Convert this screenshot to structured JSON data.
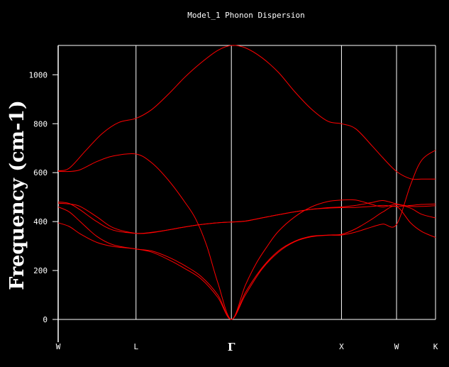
{
  "chart_data": {
    "type": "line",
    "title": "Model_1 Phonon Dispersion",
    "xlabel": "",
    "ylabel": "Frequency (cm-1)",
    "ylim": [
      0,
      1120
    ],
    "yticks": [
      0,
      200,
      400,
      600,
      800,
      1000
    ],
    "grid": false,
    "legend": "none",
    "line_color": "#ff0000",
    "axis_color": "#ffffff",
    "background_color": "#000000",
    "kpoint_labels": [
      {
        "label": "W",
        "x": 0
      },
      {
        "label": "L",
        "x": 0.707
      },
      {
        "label": "Γ",
        "x": 1.573
      },
      {
        "label": "X",
        "x": 2.573
      },
      {
        "label": "W",
        "x": 3.073
      },
      {
        "label": "K",
        "x": 3.427
      }
    ],
    "series": [
      {
        "values": [
          [
            0,
            608
          ],
          [
            0.1,
            618
          ],
          [
            0.25,
            690
          ],
          [
            0.4,
            760
          ],
          [
            0.55,
            805
          ],
          [
            0.707,
            822
          ],
          [
            0.85,
            858
          ],
          [
            1.0,
            920
          ],
          [
            1.15,
            990
          ],
          [
            1.3,
            1050
          ],
          [
            1.45,
            1100
          ],
          [
            1.573,
            1120
          ],
          [
            1.7,
            1110
          ],
          [
            1.85,
            1070
          ],
          [
            2.0,
            1010
          ],
          [
            2.15,
            930
          ],
          [
            2.3,
            860
          ],
          [
            2.45,
            810
          ],
          [
            2.573,
            800
          ],
          [
            2.7,
            780
          ],
          [
            2.85,
            710
          ],
          [
            2.95,
            660
          ],
          [
            3.073,
            605
          ],
          [
            3.2,
            575
          ],
          [
            3.3,
            574
          ],
          [
            3.427,
            574
          ]
        ]
      },
      {
        "values": [
          [
            0,
            605
          ],
          [
            0.1,
            605
          ],
          [
            0.2,
            612
          ],
          [
            0.35,
            645
          ],
          [
            0.5,
            668
          ],
          [
            0.707,
            676
          ],
          [
            0.85,
            640
          ],
          [
            1.0,
            570
          ],
          [
            1.15,
            480
          ],
          [
            1.25,
            410
          ],
          [
            1.35,
            300
          ],
          [
            1.45,
            150
          ],
          [
            1.573,
            0
          ],
          [
            1.7,
            140
          ],
          [
            1.8,
            230
          ],
          [
            1.9,
            300
          ],
          [
            2.0,
            360
          ],
          [
            2.15,
            420
          ],
          [
            2.3,
            460
          ],
          [
            2.45,
            482
          ],
          [
            2.573,
            488
          ],
          [
            2.7,
            488
          ],
          [
            2.85,
            470
          ],
          [
            2.95,
            460
          ],
          [
            3.073,
            470
          ],
          [
            3.2,
            455
          ],
          [
            3.3,
            430
          ],
          [
            3.427,
            415
          ]
        ]
      },
      {
        "values": [
          [
            0,
            475
          ],
          [
            0.1,
            472
          ],
          [
            0.2,
            462
          ],
          [
            0.35,
            420
          ],
          [
            0.5,
            375
          ],
          [
            0.707,
            352
          ],
          [
            0.85,
            355
          ],
          [
            1.0,
            366
          ],
          [
            1.15,
            378
          ],
          [
            1.3,
            388
          ],
          [
            1.45,
            395
          ],
          [
            1.573,
            398
          ],
          [
            1.7,
            402
          ],
          [
            1.85,
            415
          ],
          [
            2.0,
            428
          ],
          [
            2.15,
            440
          ],
          [
            2.3,
            450
          ],
          [
            2.45,
            457
          ],
          [
            2.573,
            460
          ],
          [
            2.7,
            466
          ],
          [
            2.85,
            478
          ],
          [
            2.95,
            486
          ],
          [
            3.073,
            472
          ],
          [
            3.2,
            462
          ],
          [
            3.3,
            462
          ],
          [
            3.427,
            465
          ]
        ]
      },
      {
        "values": [
          [
            0,
            480
          ],
          [
            0.1,
            474
          ],
          [
            0.2,
            448
          ],
          [
            0.35,
            400
          ],
          [
            0.5,
            365
          ],
          [
            0.707,
            352
          ],
          [
            0.85,
            356
          ],
          [
            1.0,
            366
          ],
          [
            1.15,
            378
          ],
          [
            1.3,
            388
          ],
          [
            1.45,
            395
          ],
          [
            1.573,
            398
          ],
          [
            1.7,
            402
          ],
          [
            1.85,
            415
          ],
          [
            2.0,
            428
          ],
          [
            2.15,
            440
          ],
          [
            2.3,
            450
          ],
          [
            2.45,
            455
          ],
          [
            2.573,
            457
          ],
          [
            2.7,
            458
          ],
          [
            2.85,
            462
          ],
          [
            2.95,
            466
          ],
          [
            3.073,
            462
          ],
          [
            3.2,
            466
          ],
          [
            3.3,
            470
          ],
          [
            3.427,
            472
          ]
        ]
      },
      {
        "values": [
          [
            0,
            460
          ],
          [
            0.1,
            440
          ],
          [
            0.2,
            400
          ],
          [
            0.35,
            340
          ],
          [
            0.5,
            305
          ],
          [
            0.707,
            288
          ],
          [
            0.85,
            280
          ],
          [
            1.0,
            255
          ],
          [
            1.15,
            220
          ],
          [
            1.3,
            175
          ],
          [
            1.45,
            100
          ],
          [
            1.573,
            0
          ],
          [
            1.7,
            110
          ],
          [
            1.85,
            210
          ],
          [
            2.0,
            280
          ],
          [
            2.15,
            320
          ],
          [
            2.3,
            340
          ],
          [
            2.45,
            345
          ],
          [
            2.573,
            348
          ],
          [
            2.7,
            370
          ],
          [
            2.85,
            410
          ],
          [
            2.95,
            440
          ],
          [
            3.073,
            462
          ],
          [
            3.2,
            395
          ],
          [
            3.3,
            360
          ],
          [
            3.427,
            335
          ]
        ]
      },
      {
        "values": [
          [
            0,
            395
          ],
          [
            0.1,
            380
          ],
          [
            0.2,
            350
          ],
          [
            0.35,
            315
          ],
          [
            0.5,
            298
          ],
          [
            0.707,
            288
          ],
          [
            0.85,
            275
          ],
          [
            1.0,
            245
          ],
          [
            1.15,
            208
          ],
          [
            1.3,
            165
          ],
          [
            1.45,
            90
          ],
          [
            1.573,
            0
          ],
          [
            1.7,
            100
          ],
          [
            1.85,
            205
          ],
          [
            2.0,
            275
          ],
          [
            2.15,
            318
          ],
          [
            2.3,
            338
          ],
          [
            2.45,
            344
          ],
          [
            2.573,
            345
          ],
          [
            2.7,
            357
          ],
          [
            2.85,
            378
          ],
          [
            2.95,
            390
          ],
          [
            3.073,
            388
          ],
          [
            3.2,
            550
          ],
          [
            3.3,
            650
          ],
          [
            3.427,
            692
          ]
        ]
      }
    ]
  }
}
